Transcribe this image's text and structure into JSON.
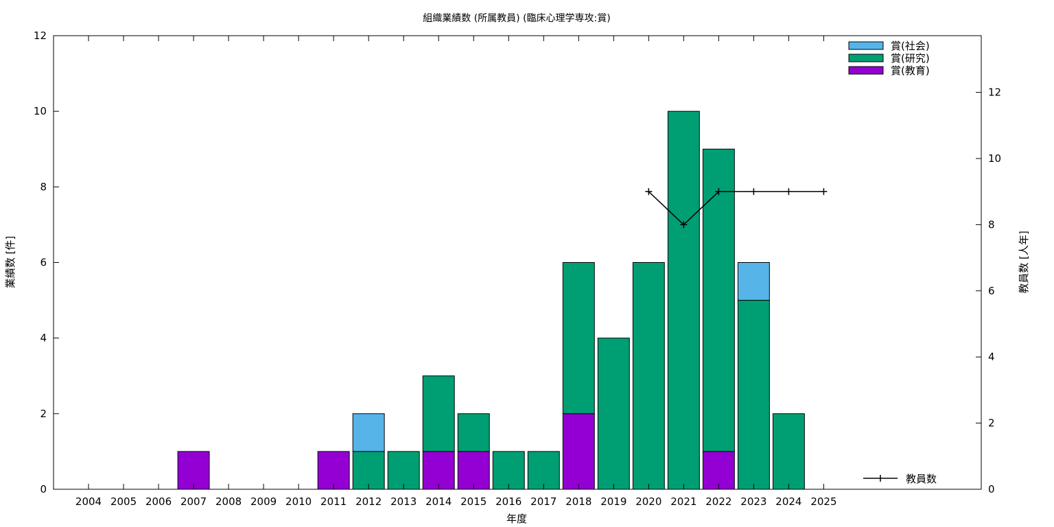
{
  "chart_data": {
    "type": "bar",
    "stacked": true,
    "title": "組織業績数 (所属教員) (臨床心理学専攻:賞)",
    "xlabel": "年度",
    "ylabel": "業績数 [件]",
    "y2label": "教員数 [人年]",
    "ylim": [
      0,
      12
    ],
    "y2lim": [
      0,
      13.714
    ],
    "yticks": [
      "0",
      "2",
      "4",
      "6",
      "8",
      "10",
      "12"
    ],
    "y2ticks": [
      "0",
      "2",
      "4",
      "6",
      "8",
      "10",
      "12"
    ],
    "grid": false,
    "legend_position": "top-right",
    "categories": [
      "2004",
      "2005",
      "2006",
      "2007",
      "2008",
      "2009",
      "2010",
      "2011",
      "2012",
      "2013",
      "2014",
      "2015",
      "2016",
      "2017",
      "2018",
      "2019",
      "2020",
      "2021",
      "2022",
      "2023",
      "2024",
      "2025"
    ],
    "series": [
      {
        "name": "賞(教育)",
        "color": "#9400d3",
        "values": [
          0,
          0,
          0,
          1,
          0,
          0,
          0,
          1,
          0,
          0,
          1,
          1,
          0,
          0,
          2,
          0,
          0,
          0,
          1,
          0,
          0,
          0
        ]
      },
      {
        "name": "賞(研究)",
        "color": "#009e73",
        "values": [
          0,
          0,
          0,
          0,
          0,
          0,
          0,
          0,
          1,
          1,
          2,
          1,
          1,
          1,
          4,
          4,
          6,
          10,
          8,
          5,
          2,
          0
        ]
      },
      {
        "name": "賞(社会)",
        "color": "#56b4e9",
        "values": [
          0,
          0,
          0,
          0,
          0,
          0,
          0,
          0,
          1,
          0,
          0,
          0,
          0,
          0,
          0,
          0,
          0,
          0,
          0,
          1,
          0,
          0
        ]
      }
    ],
    "line": {
      "name": "教員数",
      "axis": "y2",
      "color": "#000000",
      "points": [
        {
          "x": "2020",
          "y": 9
        },
        {
          "x": "2021",
          "y": 8
        },
        {
          "x": "2022",
          "y": 9
        },
        {
          "x": "2023",
          "y": 9
        },
        {
          "x": "2024",
          "y": 9
        },
        {
          "x": "2025",
          "y": 9
        }
      ]
    }
  }
}
